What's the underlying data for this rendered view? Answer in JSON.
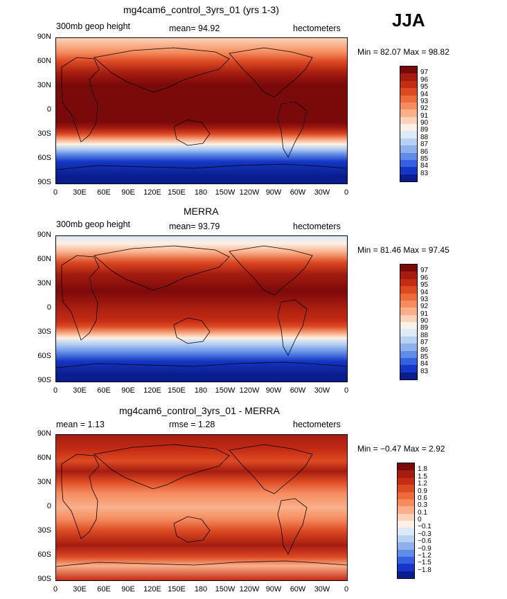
{
  "season": "JJA",
  "panels": [
    {
      "title": "mg4cam6_control_3yrs_01 (yrs 1-3)",
      "left_label": "300mb geop height",
      "center_label": "mean=   94.92",
      "right_label": "hectometers",
      "minmax": "Min =   82.07  Max =   98.82",
      "colorbar_labels": [
        "97",
        "96",
        "95",
        "94",
        "93",
        "92",
        "91",
        "90",
        "89",
        "88",
        "87",
        "86",
        "85",
        "84",
        "83"
      ],
      "colorbar_colors": [
        "#7a0a0a",
        "#a51c10",
        "#c42c14",
        "#dc4a22",
        "#ee6a3a",
        "#f58b5e",
        "#f9b08a",
        "#fcd3b8",
        "#fdf0e6",
        "#dce9f7",
        "#b8d1f2",
        "#8cb1ec",
        "#5f8ce6",
        "#3560df",
        "#1536c4",
        "#0a1d8c"
      ]
    },
    {
      "title": "MERRA",
      "left_label": "300mb geop height",
      "center_label": "mean=   93.79",
      "right_label": "hectometers",
      "minmax": "Min =   81.46  Max =   97.45",
      "colorbar_labels": [
        "97",
        "96",
        "95",
        "94",
        "93",
        "92",
        "91",
        "90",
        "89",
        "88",
        "87",
        "86",
        "85",
        "84",
        "83"
      ],
      "colorbar_colors": [
        "#7a0a0a",
        "#a51c10",
        "#c42c14",
        "#dc4a22",
        "#ee6a3a",
        "#f58b5e",
        "#f9b08a",
        "#fcd3b8",
        "#fdf0e6",
        "#dce9f7",
        "#b8d1f2",
        "#8cb1ec",
        "#5f8ce6",
        "#3560df",
        "#1536c4",
        "#0a1d8c"
      ]
    },
    {
      "title": "mg4cam6_control_3yrs_01 - MERRA",
      "left_label": "mean =    1.13",
      "center_label": "rmse =    1.28",
      "right_label": "hectometers",
      "minmax": "Min =   −0.47  Max =    2.92",
      "colorbar_labels": [
        "1.8",
        "1.5",
        "1.2",
        "0.9",
        "0.6",
        "0.3",
        "0.1",
        "0",
        "−0.1",
        "−0.3",
        "−0.6",
        "−0.9",
        "−1.2",
        "−1.5",
        "−1.8"
      ],
      "colorbar_colors": [
        "#7a0a0a",
        "#a51c10",
        "#c42c14",
        "#dc4a22",
        "#ee6a3a",
        "#f58b5e",
        "#f9b08a",
        "#fcd3b8",
        "#fdf0e6",
        "#dce9f7",
        "#b8d1f2",
        "#8cb1ec",
        "#5f8ce6",
        "#3560df",
        "#1536c4",
        "#0a1d8c"
      ]
    }
  ],
  "lat_ticks": [
    "90N",
    "60N",
    "30N",
    "0",
    "30S",
    "60S",
    "90S"
  ],
  "lon_ticks": [
    "0",
    "30E",
    "60E",
    "90E",
    "120E",
    "150E",
    "180",
    "150W",
    "120W",
    "90W",
    "60W",
    "30W",
    "0"
  ]
}
